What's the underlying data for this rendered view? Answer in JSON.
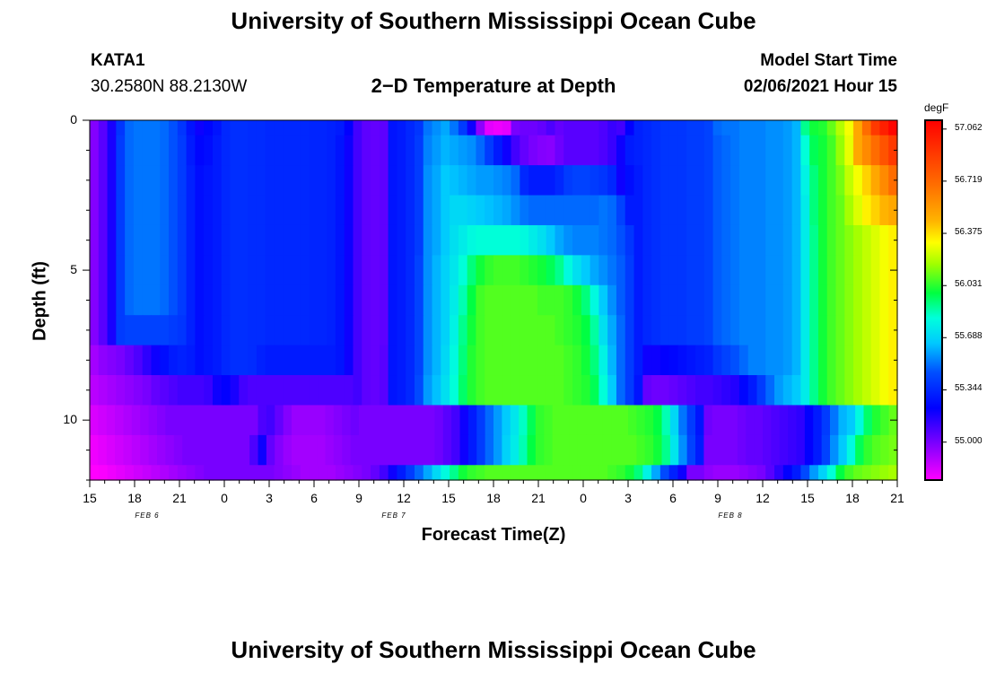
{
  "page": {
    "title_top": "University of Southern Mississippi Ocean Cube",
    "title_bottom": "University of Southern Mississippi Ocean Cube",
    "station_id": "KATA1",
    "station_coords": "30.2580N 88.2130W",
    "plot_title": "2−D Temperature at Depth",
    "model_label": "Model Start Time",
    "model_time": "02/06/2021 Hour 15"
  },
  "chart_data": {
    "type": "heatmap",
    "title": "2−D Temperature at Depth",
    "xlabel": "Forecast Time(Z)",
    "ylabel": "Depth (ft)",
    "x_start": "2021-02-06 15Z",
    "x_end": "2021-02-08 21Z",
    "x_tick_labels": [
      "15",
      "18",
      "21",
      "0",
      "3",
      "6",
      "9",
      "12",
      "15",
      "18",
      "21",
      "0",
      "3",
      "6",
      "9",
      "12",
      "15",
      "18",
      "21"
    ],
    "date_labels": [
      {
        "text": "FEB 6",
        "at_tick": 1
      },
      {
        "text": "FEB 7",
        "at_tick": 6.5
      },
      {
        "text": "FEB 8",
        "at_tick": 14
      }
    ],
    "y_ticks": [
      0,
      5,
      10
    ],
    "ylim": [
      12,
      0
    ],
    "colorbar": {
      "unit": "degF",
      "ticks": [
        "57.062",
        "56.719",
        "56.375",
        "56.031",
        "55.688",
        "55.344",
        "55.000"
      ],
      "range": [
        54.75,
        57.12
      ]
    },
    "depth_rows_ft": [
      0,
      1,
      2,
      3,
      4,
      5,
      6,
      7,
      8,
      9,
      10,
      11,
      12
    ],
    "z_degF_approx": [
      [
        54.98,
        55.06,
        55.18,
        55.38,
        55.5,
        55.52,
        55.52,
        55.52,
        55.5,
        55.46,
        55.38,
        55.28,
        55.2,
        55.24,
        55.28,
        55.34,
        55.36,
        55.36,
        55.35,
        55.35,
        55.34,
        55.34,
        55.34,
        55.34,
        55.34,
        55.33,
        55.33,
        55.32,
        55.3,
        55.22,
        55.1,
        55.05,
        55.04,
        55.05,
        55.28,
        55.3,
        55.34,
        55.38,
        55.52,
        55.56,
        55.6,
        55.52,
        55.4,
        55.2,
        54.96,
        54.8,
        54.78,
        54.8,
        55.0,
        55.02,
        55.02,
        55.04,
        55.08,
        55.04,
        55.06,
        55.06,
        55.06,
        55.06,
        55.08,
        55.12,
        55.1,
        55.22,
        55.32,
        55.34,
        55.36,
        55.38,
        55.38,
        55.38,
        55.4,
        55.4,
        55.42,
        55.5,
        55.52,
        55.52,
        55.54,
        55.54,
        55.54,
        55.56,
        55.56,
        55.58,
        55.62,
        55.9,
        56.0,
        56.02,
        56.1,
        56.2,
        56.3,
        56.5,
        56.7,
        56.9,
        57.0,
        57.1
      ],
      [
        54.98,
        55.06,
        55.18,
        55.4,
        55.5,
        55.52,
        55.52,
        55.52,
        55.5,
        55.46,
        55.4,
        55.3,
        55.24,
        55.26,
        55.3,
        55.34,
        55.36,
        55.36,
        55.35,
        55.35,
        55.34,
        55.34,
        55.34,
        55.34,
        55.34,
        55.33,
        55.33,
        55.32,
        55.28,
        55.2,
        55.1,
        55.05,
        55.04,
        55.05,
        55.28,
        55.3,
        55.34,
        55.4,
        55.54,
        55.58,
        55.62,
        55.6,
        55.58,
        55.56,
        55.5,
        55.4,
        55.3,
        55.2,
        55.1,
        55.04,
        55.0,
        54.98,
        54.97,
        55.02,
        55.06,
        55.06,
        55.06,
        55.06,
        55.08,
        55.12,
        55.2,
        55.3,
        55.32,
        55.34,
        55.36,
        55.38,
        55.38,
        55.38,
        55.4,
        55.4,
        55.42,
        55.48,
        55.5,
        55.52,
        55.54,
        55.54,
        55.54,
        55.56,
        55.56,
        55.58,
        55.62,
        55.82,
        55.96,
        56.0,
        56.06,
        56.16,
        56.28,
        56.5,
        56.6,
        56.7,
        56.8,
        56.9
      ],
      [
        54.98,
        55.06,
        55.18,
        55.4,
        55.5,
        55.52,
        55.52,
        55.52,
        55.5,
        55.46,
        55.4,
        55.32,
        55.26,
        55.28,
        55.3,
        55.34,
        55.36,
        55.36,
        55.35,
        55.35,
        55.34,
        55.34,
        55.34,
        55.34,
        55.34,
        55.33,
        55.33,
        55.32,
        55.28,
        55.2,
        55.1,
        55.05,
        55.04,
        55.05,
        55.28,
        55.3,
        55.34,
        55.4,
        55.56,
        55.6,
        55.66,
        55.64,
        55.62,
        55.6,
        55.58,
        55.58,
        55.56,
        55.54,
        55.5,
        55.34,
        55.3,
        55.3,
        55.3,
        55.34,
        55.4,
        55.42,
        55.42,
        55.4,
        55.38,
        55.34,
        55.2,
        55.26,
        55.3,
        55.34,
        55.36,
        55.38,
        55.38,
        55.38,
        55.4,
        55.4,
        55.42,
        55.48,
        55.5,
        55.52,
        55.54,
        55.54,
        55.54,
        55.56,
        55.56,
        55.58,
        55.62,
        55.78,
        55.92,
        56.0,
        56.06,
        56.12,
        56.22,
        56.3,
        56.4,
        56.5,
        56.6,
        56.7
      ],
      [
        54.98,
        55.06,
        55.18,
        55.4,
        55.5,
        55.52,
        55.52,
        55.52,
        55.5,
        55.46,
        55.4,
        55.32,
        55.26,
        55.28,
        55.3,
        55.34,
        55.36,
        55.36,
        55.35,
        55.35,
        55.34,
        55.34,
        55.34,
        55.34,
        55.34,
        55.33,
        55.33,
        55.32,
        55.28,
        55.2,
        55.1,
        55.05,
        55.04,
        55.05,
        55.28,
        55.3,
        55.34,
        55.4,
        55.56,
        55.6,
        55.66,
        55.7,
        55.7,
        55.68,
        55.66,
        55.64,
        55.62,
        55.6,
        55.56,
        55.52,
        55.5,
        55.5,
        55.5,
        55.5,
        55.5,
        55.5,
        55.5,
        55.5,
        55.52,
        55.5,
        55.42,
        55.3,
        55.3,
        55.34,
        55.36,
        55.38,
        55.38,
        55.38,
        55.4,
        55.4,
        55.42,
        55.48,
        55.5,
        55.52,
        55.54,
        55.54,
        55.54,
        55.56,
        55.56,
        55.58,
        55.62,
        55.76,
        55.92,
        56.0,
        56.06,
        56.1,
        56.18,
        56.26,
        56.34,
        56.4,
        56.46,
        56.5
      ],
      [
        54.98,
        55.06,
        55.18,
        55.4,
        55.5,
        55.52,
        55.52,
        55.52,
        55.5,
        55.46,
        55.4,
        55.32,
        55.26,
        55.28,
        55.3,
        55.34,
        55.36,
        55.36,
        55.35,
        55.35,
        55.34,
        55.34,
        55.34,
        55.34,
        55.34,
        55.33,
        55.33,
        55.32,
        55.28,
        55.2,
        55.1,
        55.05,
        55.04,
        55.05,
        55.28,
        55.3,
        55.34,
        55.4,
        55.56,
        55.6,
        55.66,
        55.72,
        55.76,
        55.8,
        55.82,
        55.82,
        55.82,
        55.82,
        55.82,
        55.8,
        55.76,
        55.72,
        55.66,
        55.6,
        55.56,
        55.54,
        55.54,
        55.54,
        55.52,
        55.5,
        55.46,
        55.38,
        55.3,
        55.34,
        55.36,
        55.38,
        55.38,
        55.38,
        55.4,
        55.4,
        55.42,
        55.48,
        55.5,
        55.52,
        55.54,
        55.54,
        55.54,
        55.56,
        55.56,
        55.58,
        55.62,
        55.76,
        55.9,
        56.0,
        56.06,
        56.1,
        56.14,
        56.18,
        56.22,
        56.26,
        56.3,
        56.34
      ],
      [
        54.98,
        55.06,
        55.18,
        55.4,
        55.5,
        55.52,
        55.52,
        55.52,
        55.5,
        55.46,
        55.4,
        55.32,
        55.26,
        55.28,
        55.3,
        55.34,
        55.36,
        55.36,
        55.35,
        55.35,
        55.34,
        55.34,
        55.34,
        55.34,
        55.34,
        55.33,
        55.33,
        55.32,
        55.28,
        55.2,
        55.1,
        55.05,
        55.04,
        55.05,
        55.28,
        55.3,
        55.34,
        55.42,
        55.56,
        55.62,
        55.68,
        55.74,
        55.82,
        55.92,
        56.0,
        56.04,
        56.06,
        56.06,
        56.06,
        56.04,
        56.02,
        56.0,
        55.96,
        55.9,
        55.8,
        55.72,
        55.66,
        55.6,
        55.56,
        55.52,
        55.48,
        55.4,
        55.3,
        55.34,
        55.36,
        55.38,
        55.38,
        55.38,
        55.4,
        55.4,
        55.42,
        55.48,
        55.5,
        55.52,
        55.54,
        55.54,
        55.54,
        55.56,
        55.56,
        55.58,
        55.62,
        55.76,
        55.9,
        56.0,
        56.06,
        56.1,
        56.14,
        56.18,
        56.22,
        56.26,
        56.3,
        56.34
      ],
      [
        54.98,
        55.06,
        55.18,
        55.4,
        55.5,
        55.52,
        55.52,
        55.52,
        55.5,
        55.46,
        55.4,
        55.32,
        55.26,
        55.28,
        55.3,
        55.34,
        55.36,
        55.36,
        55.35,
        55.35,
        55.34,
        55.34,
        55.34,
        55.34,
        55.34,
        55.33,
        55.33,
        55.32,
        55.28,
        55.2,
        55.1,
        55.05,
        55.04,
        55.05,
        55.28,
        55.3,
        55.34,
        55.42,
        55.56,
        55.62,
        55.68,
        55.76,
        55.86,
        55.98,
        56.06,
        56.08,
        56.08,
        56.08,
        56.08,
        56.08,
        56.08,
        56.06,
        56.06,
        56.06,
        56.04,
        56.0,
        55.92,
        55.8,
        55.66,
        55.56,
        55.48,
        55.4,
        55.3,
        55.34,
        55.36,
        55.38,
        55.38,
        55.38,
        55.4,
        55.4,
        55.42,
        55.48,
        55.5,
        55.52,
        55.54,
        55.54,
        55.54,
        55.56,
        55.56,
        55.58,
        55.62,
        55.76,
        55.9,
        56.0,
        56.06,
        56.1,
        56.14,
        56.18,
        56.22,
        56.26,
        56.3,
        56.34
      ],
      [
        54.98,
        55.06,
        55.18,
        55.4,
        55.42,
        55.42,
        55.42,
        55.42,
        55.42,
        55.4,
        55.38,
        55.32,
        55.26,
        55.28,
        55.3,
        55.34,
        55.36,
        55.36,
        55.35,
        55.35,
        55.34,
        55.34,
        55.34,
        55.34,
        55.34,
        55.33,
        55.33,
        55.32,
        55.28,
        55.2,
        55.1,
        55.05,
        55.04,
        55.05,
        55.28,
        55.3,
        55.34,
        55.42,
        55.56,
        55.62,
        55.68,
        55.78,
        55.9,
        56.0,
        56.06,
        56.08,
        56.08,
        56.08,
        56.08,
        56.08,
        56.08,
        56.08,
        56.08,
        56.06,
        56.04,
        56.02,
        55.98,
        55.88,
        55.72,
        55.6,
        55.5,
        55.4,
        55.3,
        55.34,
        55.36,
        55.38,
        55.38,
        55.38,
        55.4,
        55.4,
        55.42,
        55.48,
        55.5,
        55.52,
        55.54,
        55.54,
        55.54,
        55.56,
        55.56,
        55.58,
        55.62,
        55.76,
        55.9,
        56.0,
        56.06,
        56.1,
        56.14,
        56.18,
        56.22,
        56.26,
        56.3,
        56.34
      ],
      [
        54.92,
        54.96,
        54.98,
        55.0,
        55.04,
        55.08,
        55.14,
        55.2,
        55.26,
        55.3,
        55.32,
        55.3,
        55.26,
        55.28,
        55.3,
        55.34,
        55.36,
        55.36,
        55.35,
        55.32,
        55.3,
        55.3,
        55.3,
        55.3,
        55.3,
        55.3,
        55.3,
        55.3,
        55.28,
        55.2,
        55.1,
        55.05,
        55.04,
        55.06,
        55.28,
        55.3,
        55.34,
        55.42,
        55.56,
        55.62,
        55.7,
        55.8,
        55.92,
        56.02,
        56.06,
        56.08,
        56.08,
        56.08,
        56.08,
        56.08,
        56.08,
        56.08,
        56.08,
        56.08,
        56.06,
        56.04,
        56.0,
        55.92,
        55.78,
        55.62,
        55.5,
        55.4,
        55.3,
        55.2,
        55.2,
        55.22,
        55.24,
        55.26,
        55.28,
        55.3,
        55.32,
        55.38,
        55.42,
        55.46,
        55.5,
        55.54,
        55.54,
        55.56,
        55.56,
        55.58,
        55.62,
        55.76,
        55.9,
        56.0,
        56.06,
        56.1,
        56.14,
        56.18,
        56.22,
        56.26,
        56.3,
        56.34
      ],
      [
        54.88,
        54.9,
        54.92,
        54.94,
        54.96,
        54.98,
        55.0,
        55.04,
        55.06,
        55.08,
        55.1,
        55.1,
        55.1,
        55.12,
        55.2,
        55.22,
        55.18,
        55.1,
        55.08,
        55.08,
        55.08,
        55.08,
        55.08,
        55.08,
        55.08,
        55.08,
        55.08,
        55.08,
        55.08,
        55.08,
        55.1,
        55.05,
        55.04,
        55.06,
        55.28,
        55.3,
        55.34,
        55.44,
        55.58,
        55.64,
        55.72,
        55.82,
        55.94,
        56.02,
        56.06,
        56.08,
        56.08,
        56.08,
        56.08,
        56.08,
        56.08,
        56.08,
        56.08,
        56.08,
        56.06,
        56.04,
        56.02,
        55.96,
        55.82,
        55.66,
        55.5,
        55.4,
        55.28,
        55.04,
        55.02,
        55.02,
        55.04,
        55.06,
        55.08,
        55.1,
        55.1,
        55.12,
        55.14,
        55.16,
        55.24,
        55.3,
        55.4,
        55.5,
        55.58,
        55.62,
        55.66,
        55.76,
        55.9,
        56.0,
        56.06,
        56.1,
        56.14,
        56.18,
        56.22,
        56.26,
        56.3,
        56.34
      ],
      [
        54.82,
        54.84,
        54.86,
        54.88,
        54.9,
        54.92,
        54.94,
        54.96,
        54.98,
        55.0,
        55.0,
        55.0,
        55.0,
        55.0,
        55.0,
        55.0,
        55.0,
        55.0,
        55.0,
        55.0,
        55.08,
        55.1,
        55.04,
        54.98,
        54.94,
        54.94,
        54.94,
        54.94,
        54.96,
        54.98,
        55.0,
        55.02,
        55.0,
        55.0,
        55.0,
        55.0,
        55.0,
        55.0,
        55.0,
        55.0,
        55.0,
        55.02,
        55.06,
        55.1,
        55.2,
        55.3,
        55.4,
        55.5,
        55.58,
        55.66,
        55.74,
        55.84,
        55.96,
        56.04,
        56.06,
        56.08,
        56.08,
        56.08,
        56.08,
        56.08,
        56.08,
        56.08,
        56.08,
        56.08,
        56.06,
        56.04,
        56.02,
        55.98,
        55.86,
        55.7,
        55.52,
        55.4,
        55.28,
        55.02,
        55.0,
        55.0,
        55.0,
        55.02,
        55.04,
        55.04,
        55.06,
        55.08,
        55.1,
        55.12,
        55.14,
        55.22,
        55.3,
        55.4,
        55.52,
        55.62,
        55.66,
        55.8,
        55.94,
        56.02,
        56.06,
        56.1
      ],
      [
        54.78,
        54.8,
        54.82,
        54.84,
        54.86,
        54.88,
        54.9,
        54.92,
        54.94,
        54.96,
        54.98,
        55.0,
        55.0,
        55.0,
        55.0,
        55.0,
        55.0,
        55.0,
        55.0,
        55.08,
        55.2,
        55.04,
        54.98,
        54.94,
        54.92,
        54.92,
        54.92,
        54.92,
        54.94,
        54.96,
        54.98,
        55.0,
        55.0,
        55.0,
        55.0,
        55.0,
        55.0,
        55.0,
        55.0,
        55.0,
        55.0,
        55.02,
        55.06,
        55.1,
        55.2,
        55.3,
        55.4,
        55.5,
        55.58,
        55.68,
        55.76,
        55.86,
        55.98,
        56.04,
        56.06,
        56.08,
        56.08,
        56.08,
        56.08,
        56.08,
        56.08,
        56.08,
        56.08,
        56.08,
        56.08,
        56.06,
        56.04,
        56.0,
        55.9,
        55.74,
        55.56,
        55.42,
        55.3,
        55.0,
        55.0,
        55.0,
        55.0,
        55.02,
        55.04,
        55.04,
        55.06,
        55.08,
        55.1,
        55.12,
        55.14,
        55.22,
        55.3,
        55.42,
        55.56,
        55.66,
        55.8,
        55.96,
        56.04,
        56.08,
        56.1,
        56.12
      ],
      [
        54.74,
        54.76,
        54.78,
        54.8,
        54.82,
        54.84,
        54.86,
        54.88,
        54.9,
        54.92,
        54.94,
        54.96,
        54.98,
        55.0,
        55.0,
        55.0,
        55.0,
        55.0,
        55.0,
        55.0,
        55.0,
        54.98,
        54.96,
        54.94,
        54.92,
        54.92,
        54.92,
        54.92,
        54.94,
        54.96,
        54.98,
        55.0,
        55.04,
        55.1,
        55.2,
        55.3,
        55.4,
        55.5,
        55.6,
        55.7,
        55.8,
        55.9,
        56.0,
        56.04,
        56.06,
        56.08,
        56.08,
        56.08,
        56.08,
        56.08,
        56.08,
        56.08,
        56.08,
        56.08,
        56.08,
        56.08,
        56.08,
        56.08,
        56.08,
        56.06,
        56.04,
        56.0,
        55.92,
        55.78,
        55.6,
        55.44,
        55.32,
        55.2,
        55.0,
        55.0,
        54.96,
        54.94,
        54.94,
        54.94,
        54.96,
        54.98,
        55.0,
        55.06,
        55.14,
        55.22,
        55.3,
        55.44,
        55.58,
        55.68,
        55.82,
        55.98,
        56.06,
        56.1,
        56.12,
        56.14,
        56.16,
        56.18
      ]
    ]
  }
}
